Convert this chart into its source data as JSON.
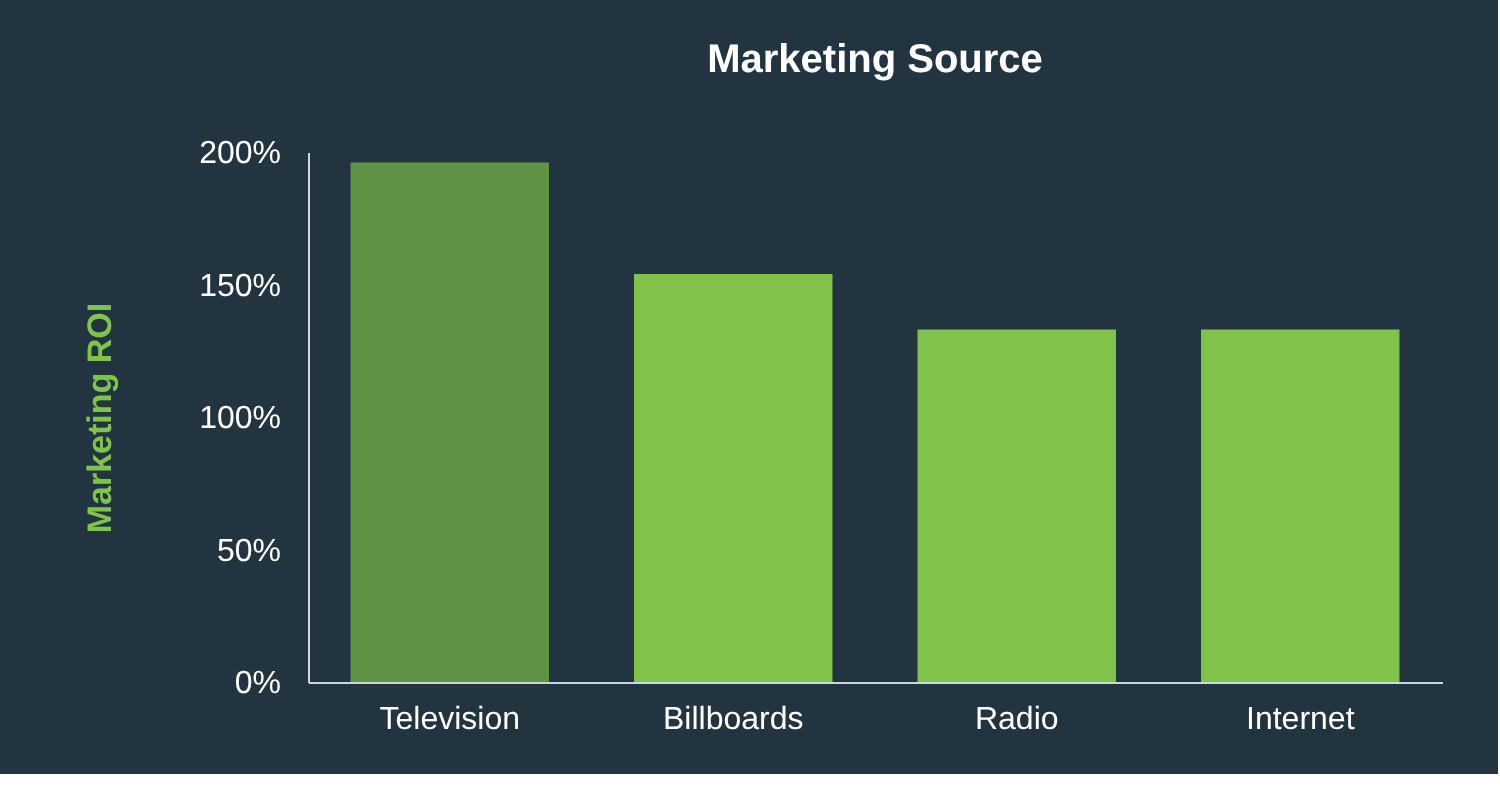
{
  "chart_data": {
    "type": "bar",
    "title": "Marketing Source",
    "ylabel": "Marketing ROI",
    "categories": [
      "Television",
      "Billboards",
      "Radio",
      "Internet"
    ],
    "values": [
      196,
      154,
      133,
      133
    ],
    "colors": [
      "#5f9447",
      "#80c34b",
      "#80c34b",
      "#80c34b"
    ],
    "ylim": [
      0,
      200
    ],
    "yticks": [
      {
        "value": 0,
        "label": "0%"
      },
      {
        "value": 50,
        "label": "50%"
      },
      {
        "value": 100,
        "label": "100%"
      },
      {
        "value": 150,
        "label": "150%"
      },
      {
        "value": 200,
        "label": "200%"
      }
    ],
    "grid": false
  }
}
